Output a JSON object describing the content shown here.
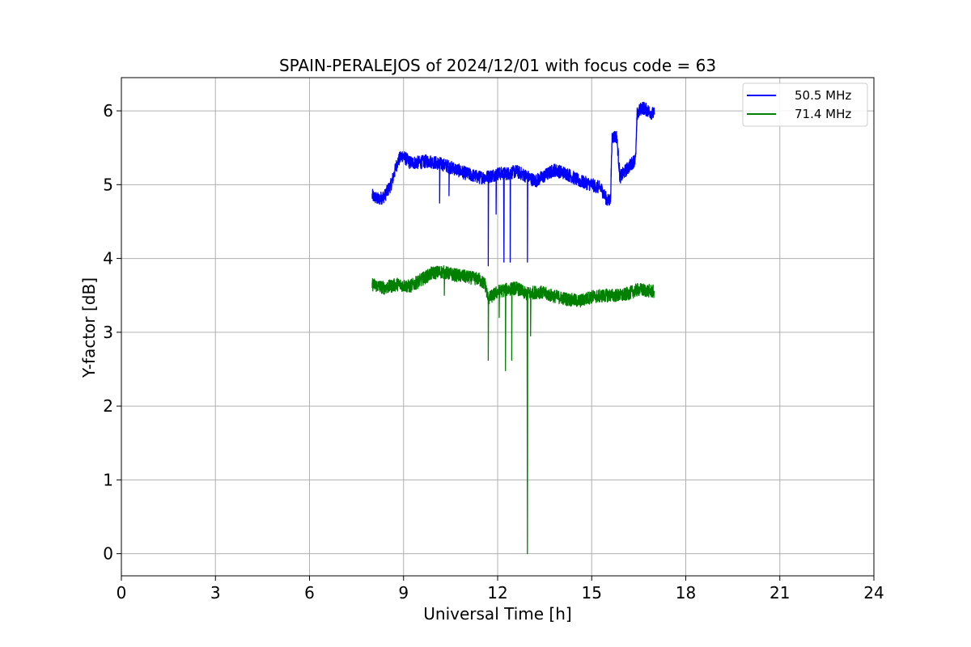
{
  "chart_data": {
    "type": "line",
    "title": "SPAIN-PERALEJOS of 2024/12/01 with focus code = 63",
    "xlabel": "Universal Time [h]",
    "ylabel": "Y-factor [dB]",
    "xlim": [
      0,
      24
    ],
    "ylim": [
      -0.3,
      6.45
    ],
    "xticks": [
      0,
      3,
      6,
      9,
      12,
      15,
      18,
      21,
      24
    ],
    "yticks": [
      0,
      1,
      2,
      3,
      4,
      5,
      6
    ],
    "grid": true,
    "legend_position": "top-right",
    "series": [
      {
        "name": "50.5 MHz",
        "color": "#0000ff",
        "points": [
          [
            8.0,
            4.85
          ],
          [
            8.2,
            4.8
          ],
          [
            8.4,
            4.85
          ],
          [
            8.6,
            5.0
          ],
          [
            8.8,
            5.3
          ],
          [
            8.95,
            5.4
          ],
          [
            9.2,
            5.3
          ],
          [
            9.5,
            5.3
          ],
          [
            9.8,
            5.32
          ],
          [
            10.2,
            5.28
          ],
          [
            10.6,
            5.22
          ],
          [
            11.0,
            5.15
          ],
          [
            11.4,
            5.1
          ],
          [
            11.6,
            5.1
          ],
          [
            11.8,
            5.12
          ],
          [
            12.0,
            5.15
          ],
          [
            12.3,
            5.15
          ],
          [
            12.6,
            5.18
          ],
          [
            12.9,
            5.12
          ],
          [
            13.2,
            5.05
          ],
          [
            13.5,
            5.12
          ],
          [
            13.8,
            5.2
          ],
          [
            14.2,
            5.15
          ],
          [
            14.6,
            5.05
          ],
          [
            15.0,
            5.0
          ],
          [
            15.3,
            4.95
          ],
          [
            15.5,
            4.78
          ],
          [
            15.6,
            4.8
          ],
          [
            15.65,
            5.65
          ],
          [
            15.8,
            5.65
          ],
          [
            15.9,
            5.1
          ],
          [
            16.2,
            5.25
          ],
          [
            16.4,
            5.35
          ],
          [
            16.45,
            5.95
          ],
          [
            16.6,
            6.05
          ],
          [
            16.8,
            6.0
          ],
          [
            17.0,
            5.95
          ]
        ],
        "dips": [
          [
            10.15,
            4.75
          ],
          [
            10.45,
            4.85
          ],
          [
            11.7,
            3.9
          ],
          [
            11.95,
            4.6
          ],
          [
            12.2,
            3.95
          ],
          [
            12.4,
            3.95
          ],
          [
            12.95,
            3.95
          ]
        ]
      },
      {
        "name": "71.4 MHz",
        "color": "#008000",
        "points": [
          [
            8.0,
            3.65
          ],
          [
            8.4,
            3.6
          ],
          [
            8.8,
            3.65
          ],
          [
            9.2,
            3.62
          ],
          [
            9.6,
            3.72
          ],
          [
            9.9,
            3.8
          ],
          [
            10.2,
            3.82
          ],
          [
            10.6,
            3.78
          ],
          [
            11.0,
            3.75
          ],
          [
            11.4,
            3.72
          ],
          [
            11.6,
            3.65
          ],
          [
            11.7,
            3.45
          ],
          [
            12.0,
            3.55
          ],
          [
            12.3,
            3.58
          ],
          [
            12.6,
            3.6
          ],
          [
            12.9,
            3.52
          ],
          [
            13.3,
            3.55
          ],
          [
            13.7,
            3.5
          ],
          [
            14.2,
            3.45
          ],
          [
            14.6,
            3.42
          ],
          [
            15.0,
            3.48
          ],
          [
            15.5,
            3.5
          ],
          [
            16.0,
            3.5
          ],
          [
            16.5,
            3.58
          ],
          [
            17.0,
            3.55
          ]
        ],
        "dips": [
          [
            10.3,
            3.5
          ],
          [
            11.7,
            2.62
          ],
          [
            12.05,
            3.2
          ],
          [
            12.25,
            2.48
          ],
          [
            12.45,
            2.62
          ],
          [
            12.95,
            0.0
          ],
          [
            13.05,
            2.95
          ]
        ]
      }
    ]
  }
}
